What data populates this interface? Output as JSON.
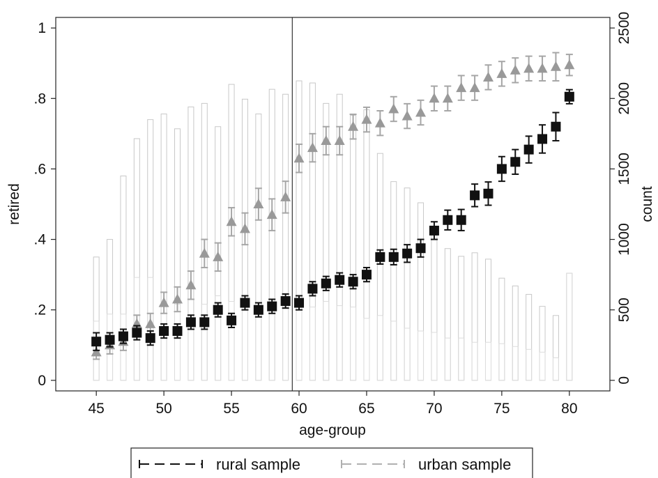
{
  "chart_data": {
    "type": "scatter",
    "xlabel": "age-group",
    "ylabel": "retired",
    "y2label": "count",
    "xlim": [
      42,
      83
    ],
    "ylim": [
      -0.03,
      1.03
    ],
    "y2lim": [
      -75,
      2575
    ],
    "xticks": [
      45,
      50,
      55,
      60,
      65,
      70,
      75,
      80
    ],
    "yticks": [
      0,
      0.2,
      0.4,
      0.6,
      0.8,
      1
    ],
    "ytick_labels": [
      "0",
      ".2",
      ".4",
      ".6",
      ".8",
      "1"
    ],
    "y2ticks": [
      0,
      500,
      1000,
      1500,
      2000,
      2500
    ],
    "y2tick_labels": [
      "0",
      "500",
      "1000",
      "1500",
      "2000",
      "2500"
    ],
    "vline_x": 59.5,
    "grid": false,
    "legend_position": "bottom",
    "legend": [
      {
        "label": "rural sample",
        "color": "#111111",
        "dash": "dashed"
      },
      {
        "label": "urban sample",
        "color": "#b0b0b0",
        "dash": "dashed"
      }
    ],
    "x": [
      45,
      46,
      47,
      48,
      49,
      50,
      51,
      52,
      53,
      54,
      55,
      56,
      57,
      58,
      59,
      60,
      61,
      62,
      63,
      64,
      65,
      66,
      67,
      68,
      69,
      70,
      71,
      72,
      73,
      74,
      75,
      76,
      77,
      78,
      79,
      80
    ],
    "series": [
      {
        "name": "rural sample",
        "color": "#111111",
        "marker": "square",
        "values": [
          0.11,
          0.115,
          0.125,
          0.135,
          0.12,
          0.14,
          0.14,
          0.165,
          0.165,
          0.2,
          0.17,
          0.22,
          0.2,
          0.21,
          0.225,
          0.22,
          0.26,
          0.275,
          0.285,
          0.28,
          0.3,
          0.35,
          0.35,
          0.36,
          0.375,
          0.425,
          0.455,
          0.455,
          0.525,
          0.53,
          0.6,
          0.62,
          0.655,
          0.685,
          0.72,
          0.805
        ],
        "err": [
          0.025,
          0.02,
          0.02,
          0.02,
          0.02,
          0.02,
          0.02,
          0.02,
          0.02,
          0.02,
          0.02,
          0.02,
          0.02,
          0.02,
          0.02,
          0.02,
          0.02,
          0.02,
          0.02,
          0.02,
          0.02,
          0.02,
          0.022,
          0.025,
          0.025,
          0.025,
          0.028,
          0.03,
          0.032,
          0.033,
          0.035,
          0.035,
          0.038,
          0.04,
          0.04,
          0.02
        ]
      },
      {
        "name": "urban sample",
        "color": "#999999",
        "marker": "triangle",
        "values": [
          0.08,
          0.1,
          0.11,
          0.16,
          0.16,
          0.22,
          0.23,
          0.27,
          0.36,
          0.35,
          0.45,
          0.43,
          0.5,
          0.47,
          0.52,
          0.63,
          0.66,
          0.68,
          0.68,
          0.72,
          0.74,
          0.73,
          0.77,
          0.75,
          0.76,
          0.8,
          0.8,
          0.83,
          0.83,
          0.86,
          0.87,
          0.88,
          0.885,
          0.885,
          0.89,
          0.895
        ],
        "err": [
          0.02,
          0.025,
          0.025,
          0.025,
          0.03,
          0.03,
          0.035,
          0.04,
          0.04,
          0.04,
          0.04,
          0.045,
          0.045,
          0.045,
          0.045,
          0.04,
          0.04,
          0.04,
          0.04,
          0.035,
          0.035,
          0.035,
          0.035,
          0.035,
          0.035,
          0.035,
          0.035,
          0.035,
          0.035,
          0.035,
          0.035,
          0.035,
          0.035,
          0.035,
          0.04,
          0.03
        ]
      }
    ],
    "count_bars": [
      {
        "name": "rural count",
        "color": "#c8c8c8",
        "values": [
          875,
          1000,
          1450,
          1715,
          1850,
          1890,
          1785,
          1940,
          1965,
          1800,
          2100,
          1995,
          1890,
          2065,
          2030,
          2125,
          2110,
          1965,
          2030,
          1880,
          1920,
          1610,
          1410,
          1365,
          1260,
          1050,
          935,
          880,
          905,
          860,
          725,
          670,
          610,
          525,
          460,
          760
        ]
      },
      {
        "name": "urban count",
        "color": "#dcdcdc",
        "values": [
          420,
          470,
          470,
          730,
          730,
          540,
          540,
          460,
          540,
          600,
          560,
          560,
          520,
          520,
          520,
          520,
          520,
          560,
          530,
          520,
          440,
          460,
          420,
          370,
          350,
          340,
          300,
          300,
          270,
          270,
          260,
          240,
          220,
          200,
          160,
          760
        ]
      }
    ]
  }
}
